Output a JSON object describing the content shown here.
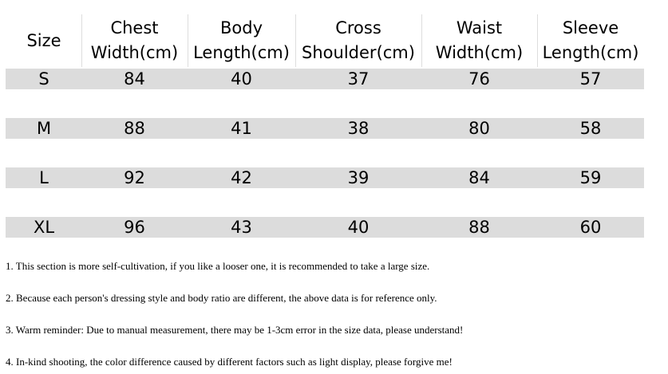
{
  "table": {
    "header": [
      [
        "Size"
      ],
      [
        "Chest",
        "Width(cm)"
      ],
      [
        "Body",
        "Length(cm)"
      ],
      [
        "Cross",
        "Shoulder(cm)"
      ],
      [
        "Waist",
        "Width(cm)"
      ],
      [
        "Sleeve",
        "Length(cm)"
      ]
    ],
    "rows": [
      [
        "S",
        84,
        40,
        37,
        76,
        57
      ],
      [
        "M",
        88,
        41,
        38,
        80,
        58
      ],
      [
        "L",
        92,
        42,
        39,
        84,
        59
      ],
      [
        "XL",
        96,
        43,
        40,
        88,
        60
      ]
    ]
  },
  "notes": [
    "1. This section is more self-cultivation, if you like a looser one, it is recommended to take a large size.",
    "2. Because each person's dressing style and body ratio are different, the above data is for reference only.",
    "3. Warm reminder: Due to manual measurement, there may be 1-3cm error in the size data, please understand!",
    "4. In-kind shooting, the color difference caused by different factors such as light display, please forgive me!"
  ]
}
